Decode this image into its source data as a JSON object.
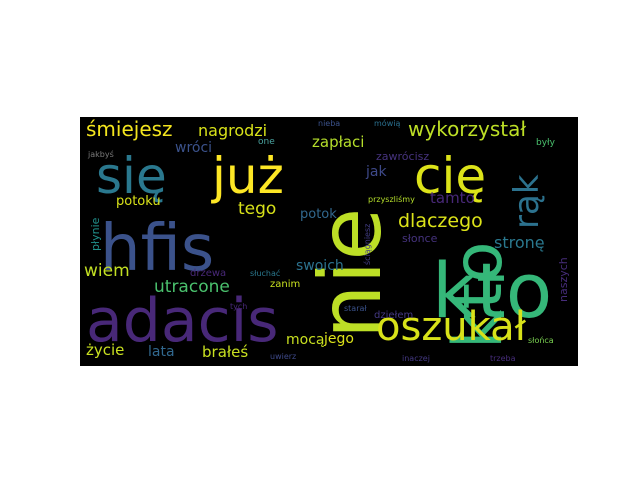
{
  "wordcloud": {
    "background": "#000000",
    "words": [
      {
        "text": "kto",
        "color": "#35b779"
      },
      {
        "text": "nie",
        "color": "#bddf26"
      },
      {
        "text": "hfis",
        "color": "#3b528b"
      },
      {
        "text": "adacis",
        "color": "#482878"
      },
      {
        "text": "się",
        "color": "#2a788e"
      },
      {
        "text": "już",
        "color": "#fde725"
      },
      {
        "text": "cię",
        "color": "#dce319"
      },
      {
        "text": "oszukał",
        "color": "#d8e219"
      },
      {
        "text": "rąk",
        "color": "#2c728e"
      },
      {
        "text": "śmiejesz",
        "color": "#f3e51e"
      },
      {
        "text": "nagrodzi",
        "color": "#d8e219"
      },
      {
        "text": "wykorzystał",
        "color": "#bddf26"
      },
      {
        "text": "wróci",
        "color": "#3b528b"
      },
      {
        "text": "zapłaci",
        "color": "#b5de2b"
      },
      {
        "text": "one",
        "color": "#4aa3a0"
      },
      {
        "text": "jakbyś",
        "color": "#7a7a7a"
      },
      {
        "text": "nieba",
        "color": "#3b528b"
      },
      {
        "text": "mówią",
        "color": "#2a6f8e"
      },
      {
        "text": "były",
        "color": "#4ac16d"
      },
      {
        "text": "zawrócisz",
        "color": "#46337e"
      },
      {
        "text": "jak",
        "color": "#3e4989"
      },
      {
        "text": "tamto",
        "color": "#482878"
      },
      {
        "text": "tego",
        "color": "#d8e219"
      },
      {
        "text": "potoku",
        "color": "#d8e219"
      },
      {
        "text": "potok",
        "color": "#31688e"
      },
      {
        "text": "przyszliśmy",
        "color": "#b5de2b"
      },
      {
        "text": "dlaczego",
        "color": "#dce319"
      },
      {
        "text": "słonce",
        "color": "#46337e"
      },
      {
        "text": "ściągniesz",
        "color": "#433e85"
      },
      {
        "text": "płynie",
        "color": "#21918c"
      },
      {
        "text": "wiem",
        "color": "#c2df23"
      },
      {
        "text": "swoich",
        "color": "#2c728e"
      },
      {
        "text": "stronę",
        "color": "#2a788e"
      },
      {
        "text": "utracone",
        "color": "#4ac16d"
      },
      {
        "text": "drzewa",
        "color": "#482878"
      },
      {
        "text": "słuchać",
        "color": "#2a788e"
      },
      {
        "text": "zanim",
        "color": "#c8e020"
      },
      {
        "text": "naszych",
        "color": "#472d7b"
      },
      {
        "text": "mocą",
        "color": "#c8e020"
      },
      {
        "text": "jego",
        "color": "#dce319"
      },
      {
        "text": "dziełem",
        "color": "#443983"
      },
      {
        "text": "starał",
        "color": "#3b528b"
      },
      {
        "text": "tych",
        "color": "#482878"
      },
      {
        "text": "uwierz",
        "color": "#3e4989"
      },
      {
        "text": "życie",
        "color": "#c8e020"
      },
      {
        "text": "lata",
        "color": "#31688e"
      },
      {
        "text": "brałeś",
        "color": "#c8e020"
      },
      {
        "text": "inaczej",
        "color": "#443983"
      },
      {
        "text": "trzeba",
        "color": "#472d7b"
      },
      {
        "text": "słońca",
        "color": "#7ad151"
      }
    ]
  }
}
